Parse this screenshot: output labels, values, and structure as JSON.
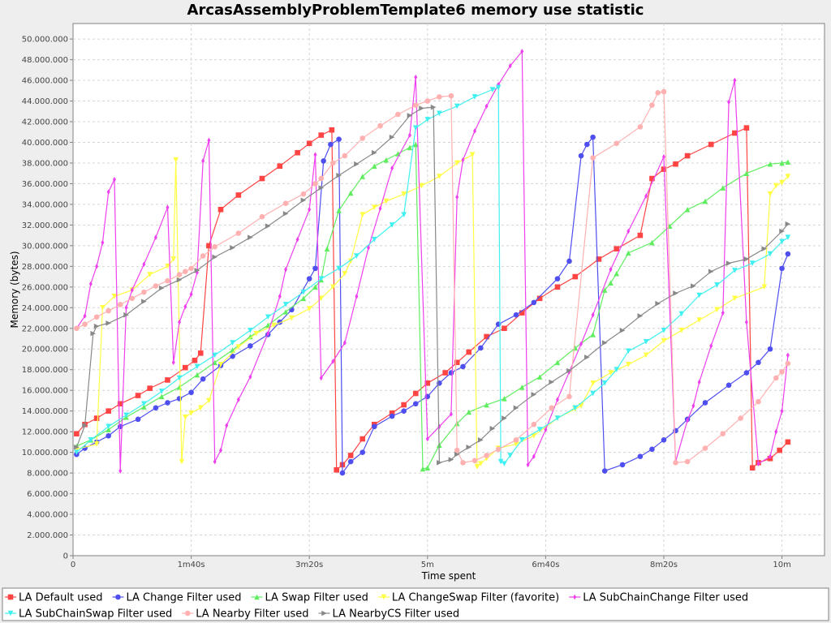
{
  "chart_data": {
    "type": "line",
    "title": "ArcasAssemblyProblemTemplate6 memory use statistic",
    "xlabel": "Time spent",
    "ylabel": "Memory (bytes)",
    "x_unit": "seconds",
    "xlim": [
      0,
      636
    ],
    "ylim": [
      0,
      51500000
    ],
    "x_ticks": [
      {
        "value": 0,
        "label": "0"
      },
      {
        "value": 100,
        "label": "1m40s"
      },
      {
        "value": 200,
        "label": "3m20s"
      },
      {
        "value": 300,
        "label": "5m"
      },
      {
        "value": 400,
        "label": "6m40s"
      },
      {
        "value": 500,
        "label": "8m20s"
      },
      {
        "value": 600,
        "label": "10m"
      }
    ],
    "y_ticks": [
      {
        "value": 0,
        "label": "0"
      },
      {
        "value": 2000000,
        "label": "2.000.000"
      },
      {
        "value": 4000000,
        "label": "4.000.000"
      },
      {
        "value": 6000000,
        "label": "6.000.000"
      },
      {
        "value": 8000000,
        "label": "8.000.000"
      },
      {
        "value": 10000000,
        "label": "10.000.000"
      },
      {
        "value": 12000000,
        "label": "12.000.000"
      },
      {
        "value": 14000000,
        "label": "14.000.000"
      },
      {
        "value": 16000000,
        "label": "16.000.000"
      },
      {
        "value": 18000000,
        "label": "18.000.000"
      },
      {
        "value": 20000000,
        "label": "20.000.000"
      },
      {
        "value": 22000000,
        "label": "22.000.000"
      },
      {
        "value": 24000000,
        "label": "24.000.000"
      },
      {
        "value": 26000000,
        "label": "26.000.000"
      },
      {
        "value": 28000000,
        "label": "28.000.000"
      },
      {
        "value": 30000000,
        "label": "30.000.000"
      },
      {
        "value": 32000000,
        "label": "32.000.000"
      },
      {
        "value": 34000000,
        "label": "34.000.000"
      },
      {
        "value": 36000000,
        "label": "36.000.000"
      },
      {
        "value": 38000000,
        "label": "38.000.000"
      },
      {
        "value": 40000000,
        "label": "40.000.000"
      },
      {
        "value": 42000000,
        "label": "42.000.000"
      },
      {
        "value": 44000000,
        "label": "44.000.000"
      },
      {
        "value": 46000000,
        "label": "46.000.000"
      },
      {
        "value": 48000000,
        "label": "48.000.000"
      },
      {
        "value": 50000000,
        "label": "50.000.000"
      }
    ],
    "grid": true,
    "legend_position": "bottom",
    "series": [
      {
        "name": "LA Default used",
        "color": "#ff4444",
        "marker": "square",
        "x": [
          3,
          10,
          20,
          30,
          40,
          55,
          65,
          80,
          95,
          103,
          108,
          115,
          125,
          140,
          160,
          175,
          190,
          200,
          210,
          219,
          223,
          228,
          235,
          245,
          255,
          270,
          280,
          290,
          300,
          315,
          325,
          335,
          350,
          365,
          380,
          395,
          410,
          425,
          445,
          460,
          480,
          490,
          500,
          510,
          520,
          540,
          560,
          570,
          575,
          580,
          590,
          598,
          605
        ],
        "y": [
          11800000,
          12700000,
          13300000,
          14000000,
          14700000,
          15500000,
          16200000,
          17000000,
          18200000,
          18900000,
          19600000,
          30000000,
          33500000,
          34900000,
          36500000,
          37700000,
          39000000,
          39900000,
          40700000,
          41200000,
          8300000,
          8800000,
          9700000,
          11300000,
          12700000,
          13800000,
          14600000,
          15700000,
          16700000,
          17700000,
          18700000,
          19700000,
          21200000,
          22000000,
          23500000,
          24900000,
          26000000,
          27000000,
          28700000,
          29700000,
          31000000,
          36500000,
          37400000,
          37900000,
          38700000,
          39800000,
          40900000,
          41400000,
          8500000,
          9000000,
          9400000,
          10200000,
          11000000
        ]
      },
      {
        "name": "LA Change Filter used",
        "color": "#4f4ff0",
        "marker": "circle",
        "x": [
          3,
          10,
          20,
          30,
          40,
          55,
          70,
          80,
          90,
          100,
          110,
          125,
          135,
          150,
          165,
          175,
          185,
          200,
          205,
          212,
          218,
          225,
          228,
          235,
          245,
          255,
          270,
          280,
          290,
          300,
          310,
          320,
          330,
          345,
          360,
          375,
          390,
          410,
          420,
          430,
          435,
          440,
          450,
          465,
          480,
          490,
          500,
          510,
          520,
          535,
          555,
          570,
          580,
          590,
          600,
          605
        ],
        "y": [
          9800000,
          10400000,
          11000000,
          11600000,
          12500000,
          13200000,
          14300000,
          14800000,
          15200000,
          15800000,
          17100000,
          18400000,
          19300000,
          20300000,
          21400000,
          22600000,
          23800000,
          26800000,
          27800000,
          38200000,
          39800000,
          40300000,
          8000000,
          9100000,
          10000000,
          12500000,
          13500000,
          14000000,
          14700000,
          15400000,
          16700000,
          17700000,
          18300000,
          20100000,
          22400000,
          23300000,
          24500000,
          26800000,
          28500000,
          38700000,
          39800000,
          40500000,
          8200000,
          8800000,
          9600000,
          10300000,
          11200000,
          12100000,
          13200000,
          14800000,
          16500000,
          17700000,
          18700000,
          20000000,
          27800000,
          29200000
        ]
      },
      {
        "name": "LA Swap Filter used",
        "color": "#60ee60",
        "marker": "triangle-up",
        "x": [
          3,
          15,
          30,
          45,
          60,
          75,
          90,
          105,
          120,
          135,
          150,
          165,
          180,
          195,
          205,
          210,
          215,
          225,
          235,
          245,
          255,
          265,
          275,
          285,
          290,
          296,
          300,
          310,
          325,
          335,
          350,
          365,
          380,
          395,
          410,
          425,
          440,
          450,
          455,
          460,
          470,
          490,
          505,
          520,
          535,
          550,
          570,
          590,
          600,
          605
        ],
        "y": [
          10600000,
          11200000,
          12200000,
          13400000,
          14400000,
          15400000,
          16300000,
          17500000,
          18700000,
          19900000,
          21200000,
          22300000,
          23600000,
          24900000,
          26000000,
          26700000,
          29700000,
          33400000,
          35100000,
          36700000,
          37700000,
          38300000,
          38900000,
          39500000,
          39800000,
          8400000,
          8500000,
          10700000,
          12800000,
          13900000,
          14600000,
          15200000,
          16300000,
          17300000,
          18700000,
          20100000,
          21400000,
          25700000,
          26400000,
          27300000,
          29300000,
          30300000,
          31900000,
          33500000,
          34300000,
          35600000,
          37000000,
          37900000,
          38000000,
          38100000
        ]
      },
      {
        "name": "LA ChangeSwap Filter (favorite)",
        "color": "#ffff44",
        "marker": "triangle-down",
        "x": [
          3,
          20,
          25,
          35,
          50,
          65,
          80,
          85,
          87,
          92,
          95,
          100,
          108,
          115,
          125,
          140,
          155,
          170,
          185,
          200,
          210,
          220,
          230,
          235,
          245,
          255,
          265,
          280,
          295,
          310,
          325,
          338,
          342,
          345,
          350,
          360,
          375,
          390,
          410,
          425,
          430,
          440,
          455,
          470,
          485,
          500,
          515,
          530,
          545,
          560,
          585,
          590,
          595,
          600,
          605
        ],
        "y": [
          10300000,
          10800000,
          24000000,
          25100000,
          25700000,
          27200000,
          28000000,
          28700000,
          38300000,
          9100000,
          13400000,
          13800000,
          14300000,
          15000000,
          18500000,
          20200000,
          21500000,
          22300000,
          23000000,
          23900000,
          24900000,
          26000000,
          27300000,
          28500000,
          33000000,
          33700000,
          34300000,
          35000000,
          35800000,
          36700000,
          38000000,
          38800000,
          8600000,
          8900000,
          9400000,
          10400000,
          10800000,
          11600000,
          13300000,
          14200000,
          14500000,
          16700000,
          17700000,
          18500000,
          19400000,
          20800000,
          21800000,
          22800000,
          23800000,
          24900000,
          26000000,
          35000000,
          35800000,
          36100000,
          36700000
        ]
      },
      {
        "name": "LA SubChainChange Filter used",
        "color": "#ee40ee",
        "marker": "diamond",
        "x": [
          3,
          10,
          15,
          20,
          25,
          30,
          35,
          40,
          45,
          50,
          60,
          70,
          80,
          85,
          90,
          95,
          100,
          105,
          110,
          115,
          120,
          125,
          130,
          140,
          150,
          165,
          175,
          180,
          190,
          200,
          205,
          210,
          220,
          230,
          240,
          250,
          260,
          270,
          285,
          290,
          300,
          310,
          320,
          325,
          330,
          340,
          350,
          360,
          370,
          380,
          385,
          390,
          400,
          410,
          420,
          430,
          440,
          455,
          470,
          485,
          500,
          510,
          520,
          525,
          530,
          540,
          550,
          555,
          560,
          570,
          580,
          590,
          595,
          600,
          605
        ],
        "y": [
          22000000,
          23200000,
          26300000,
          28000000,
          30300000,
          35200000,
          36400000,
          8200000,
          24000000,
          25700000,
          28200000,
          30800000,
          33700000,
          18700000,
          22600000,
          24100000,
          25300000,
          27400000,
          38200000,
          40200000,
          9100000,
          10200000,
          12600000,
          15100000,
          17300000,
          21500000,
          25100000,
          27700000,
          30600000,
          33500000,
          38800000,
          17200000,
          18800000,
          20600000,
          25100000,
          29800000,
          33600000,
          37500000,
          40700000,
          46300000,
          11300000,
          12500000,
          13700000,
          34700000,
          38300000,
          41100000,
          43500000,
          45600000,
          47400000,
          48800000,
          8800000,
          9600000,
          12200000,
          15100000,
          17800000,
          20500000,
          23300000,
          27700000,
          31400000,
          34800000,
          38600000,
          9100000,
          13100000,
          14500000,
          16800000,
          20300000,
          23500000,
          43900000,
          46000000,
          22600000,
          8900000,
          9600000,
          12000000,
          14000000,
          19400000
        ]
      },
      {
        "name": "LA SubChainSwap Filter used",
        "color": "#40f0f0",
        "marker": "triangle-down",
        "x": [
          3,
          15,
          30,
          45,
          60,
          75,
          90,
          105,
          120,
          135,
          150,
          165,
          180,
          195,
          210,
          225,
          240,
          255,
          270,
          280,
          290,
          300,
          310,
          325,
          340,
          355,
          360,
          362,
          365,
          370,
          380,
          395,
          410,
          425,
          440,
          450,
          460,
          470,
          485,
          500,
          515,
          530,
          545,
          560,
          575,
          590,
          600,
          605
        ],
        "y": [
          10000000,
          11200000,
          12500000,
          13600000,
          14700000,
          15900000,
          17200000,
          18300000,
          19400000,
          20600000,
          21800000,
          23100000,
          24300000,
          25500000,
          26800000,
          27800000,
          29000000,
          30600000,
          32000000,
          33000000,
          41400000,
          42200000,
          42800000,
          43500000,
          44400000,
          45100000,
          45300000,
          9100000,
          8900000,
          9700000,
          11200000,
          12200000,
          13300000,
          14300000,
          15700000,
          16700000,
          18000000,
          19800000,
          20700000,
          21800000,
          23400000,
          25200000,
          26200000,
          27600000,
          28300000,
          29200000,
          30400000,
          30800000
        ]
      },
      {
        "name": "LA Nearby Filter used",
        "color": "#ffb0b0",
        "marker": "circle",
        "x": [
          3,
          10,
          20,
          30,
          40,
          50,
          60,
          70,
          80,
          90,
          95,
          100,
          110,
          120,
          140,
          160,
          180,
          195,
          205,
          210,
          220,
          230,
          245,
          260,
          275,
          290,
          300,
          310,
          320,
          325,
          330,
          340,
          350,
          360,
          375,
          390,
          405,
          420,
          440,
          460,
          480,
          490,
          495,
          500,
          510,
          520,
          535,
          550,
          565,
          580,
          595,
          600,
          605
        ],
        "y": [
          22000000,
          22400000,
          23100000,
          23700000,
          24300000,
          24900000,
          25500000,
          26100000,
          26600000,
          27200000,
          27500000,
          27800000,
          29000000,
          29900000,
          31200000,
          32800000,
          34100000,
          35000000,
          36000000,
          36500000,
          38000000,
          38700000,
          40400000,
          41600000,
          42700000,
          43600000,
          44000000,
          44400000,
          44500000,
          10200000,
          9000000,
          9200000,
          9700000,
          10300000,
          11200000,
          12700000,
          14300000,
          15400000,
          38500000,
          39900000,
          41500000,
          43600000,
          44800000,
          44900000,
          9000000,
          9100000,
          10400000,
          11800000,
          13300000,
          14900000,
          17200000,
          17800000,
          18600000
        ]
      },
      {
        "name": "LA NearbyCS Filter used",
        "color": "#888888",
        "marker": "triangle-right",
        "x": [
          3,
          10,
          17,
          20,
          30,
          45,
          60,
          75,
          90,
          105,
          120,
          135,
          150,
          165,
          180,
          195,
          210,
          225,
          240,
          255,
          270,
          285,
          295,
          305,
          310,
          320,
          325,
          335,
          345,
          355,
          365,
          375,
          390,
          405,
          420,
          435,
          450,
          465,
          480,
          495,
          510,
          525,
          540,
          555,
          570,
          585,
          600,
          605
        ],
        "y": [
          10500000,
          12600000,
          21500000,
          22200000,
          22500000,
          23300000,
          24600000,
          25900000,
          26700000,
          27600000,
          28900000,
          29800000,
          30800000,
          31900000,
          33100000,
          34400000,
          35600000,
          36800000,
          37900000,
          39000000,
          40500000,
          42600000,
          43300000,
          43400000,
          9000000,
          9300000,
          9800000,
          10500000,
          11200000,
          12300000,
          13300000,
          14300000,
          15600000,
          16800000,
          17900000,
          19200000,
          20600000,
          21800000,
          23200000,
          24400000,
          25400000,
          26100000,
          27500000,
          28300000,
          28700000,
          29700000,
          31400000,
          32100000
        ]
      }
    ]
  }
}
